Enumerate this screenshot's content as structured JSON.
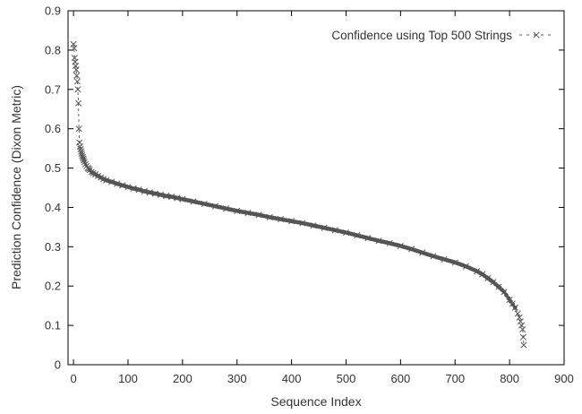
{
  "chart_data": {
    "type": "scatter",
    "title": "",
    "xlabel": "Sequence Index",
    "ylabel": "Prediction Confidence (Dixon Metric)",
    "xlim": [
      -10,
      900
    ],
    "ylim": [
      0,
      0.9
    ],
    "xticks": [
      "0",
      "100",
      "200",
      "300",
      "400",
      "500",
      "600",
      "700",
      "800",
      "900"
    ],
    "yticks": [
      "0",
      "0.1",
      "0.2",
      "0.3",
      "0.4",
      "0.5",
      "0.6",
      "0.7",
      "0.8",
      "0.9"
    ],
    "grid": false,
    "legend_position": "top-right",
    "marker": "×",
    "line_style": "dashed",
    "series": [
      {
        "name": "Confidence using Top 500 Strings",
        "color": "#555555",
        "x": [
          0,
          1,
          2,
          3,
          4,
          5,
          6,
          7,
          8,
          9,
          10,
          11,
          12,
          13,
          14,
          15,
          16,
          17,
          18,
          19,
          20,
          22,
          24,
          26,
          28,
          30,
          33,
          36,
          40,
          45,
          50,
          55,
          60,
          70,
          80,
          90,
          100,
          110,
          120,
          130,
          140,
          150,
          160,
          170,
          180,
          190,
          200,
          220,
          240,
          260,
          280,
          300,
          320,
          340,
          360,
          380,
          400,
          420,
          440,
          460,
          480,
          500,
          520,
          540,
          560,
          580,
          600,
          620,
          640,
          660,
          680,
          700,
          720,
          740,
          750,
          760,
          770,
          780,
          790,
          800,
          805,
          810,
          815,
          818,
          820,
          822,
          824,
          825,
          826
        ],
        "y": [
          0.815,
          0.805,
          0.78,
          0.77,
          0.76,
          0.75,
          0.735,
          0.72,
          0.7,
          0.665,
          0.6,
          0.565,
          0.555,
          0.548,
          0.542,
          0.537,
          0.532,
          0.528,
          0.524,
          0.52,
          0.515,
          0.51,
          0.505,
          0.5,
          0.498,
          0.495,
          0.49,
          0.487,
          0.484,
          0.48,
          0.476,
          0.472,
          0.469,
          0.465,
          0.46,
          0.456,
          0.452,
          0.448,
          0.445,
          0.441,
          0.438,
          0.435,
          0.432,
          0.429,
          0.427,
          0.424,
          0.421,
          0.415,
          0.409,
          0.403,
          0.397,
          0.391,
          0.386,
          0.381,
          0.375,
          0.37,
          0.365,
          0.36,
          0.354,
          0.348,
          0.342,
          0.336,
          0.329,
          0.322,
          0.315,
          0.309,
          0.302,
          0.294,
          0.285,
          0.276,
          0.268,
          0.26,
          0.25,
          0.238,
          0.23,
          0.22,
          0.21,
          0.198,
          0.185,
          0.165,
          0.155,
          0.145,
          0.13,
          0.12,
          0.11,
          0.1,
          0.09,
          0.07,
          0.05
        ]
      }
    ]
  }
}
